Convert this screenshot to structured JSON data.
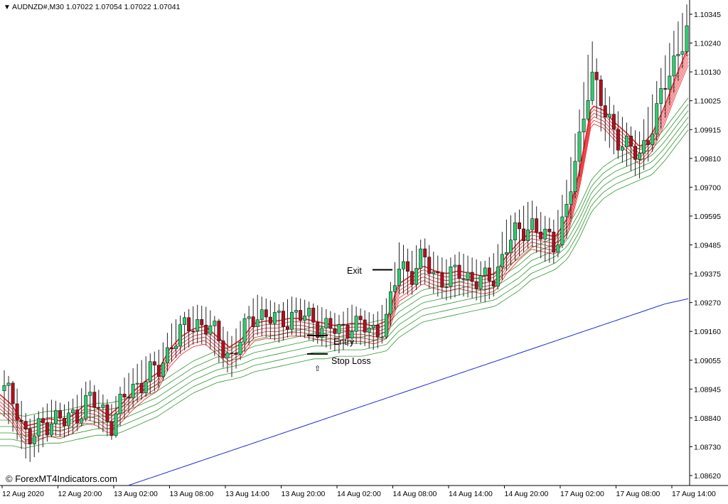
{
  "window": {
    "symbol_header": "AUDNZD#,M30  1.07022 1.07054 1.07022 1.07041",
    "menu_glyph": "▼"
  },
  "watermark": "© ForexMT4Indicators.com",
  "annotations": {
    "exit_label": "Exit",
    "entry_label": "Entry",
    "stop_loss_label": "Stop Loss",
    "arrow_glyph": "⇧"
  },
  "colors": {
    "background": "#ffffff",
    "candle_up": "#2ecc71",
    "candle_down": "#b01020",
    "wick": "#222222",
    "fast_ema": "#e8141c",
    "slow_ema": "#1a8c1a",
    "ma_long": "#1f2bd6",
    "axis": "#000000"
  },
  "chart_data": {
    "type": "candlestick",
    "title": "AUDNZD#,M30",
    "y_axis": {
      "ylim": [
        1.0856,
        1.10405
      ],
      "tick_labels": [
        "1.10345",
        "1.10240",
        "1.10130",
        "1.10025",
        "1.09915",
        "1.09810",
        "1.09700",
        "1.09595",
        "1.09485",
        "1.09375",
        "1.09270",
        "1.09160",
        "1.09055",
        "1.08945",
        "1.08840",
        "1.08730",
        "1.08620"
      ]
    },
    "x_axis": {
      "tick_labels": [
        "12 Aug 2020",
        "12 Aug 20:00",
        "13 Aug 02:00",
        "13 Aug 08:00",
        "13 Aug 14:00",
        "13 Aug 20:00",
        "14 Aug 02:00",
        "14 Aug 08:00",
        "14 Aug 14:00",
        "14 Aug 20:00",
        "17 Aug 02:00",
        "17 Aug 08:00",
        "17 Aug 14:00"
      ]
    },
    "close_series": [
      1.0892,
      1.0887,
      1.0872,
      1.0878,
      1.0882,
      1.088,
      1.0883,
      1.0889,
      1.0885,
      1.088,
      1.0889,
      1.0894,
      1.0898,
      1.09,
      1.0911,
      1.0915,
      1.0918,
      1.0917,
      1.091,
      1.0905,
      1.0914,
      1.0922,
      1.092,
      1.0918,
      1.0921,
      1.092,
      1.0918,
      1.0916,
      1.0914,
      1.0918,
      1.0916,
      1.0914,
      1.092,
      1.094,
      1.0937,
      1.0942,
      1.0936,
      1.0934,
      1.0937,
      1.0935,
      1.0933,
      1.0936,
      1.0948,
      1.0952,
      1.0956,
      1.095,
      1.0948,
      1.0962,
      1.0985,
      1.1015,
      1.0998,
      1.099,
      1.0985,
      1.098,
      1.0992,
      1.1005,
      1.1018,
      1.103
    ],
    "low_series": [
      1.0883,
      1.0875,
      1.0865,
      1.087,
      1.0876,
      1.0875,
      1.0877,
      1.0882,
      1.0878,
      1.0874,
      1.0882,
      1.0888,
      1.0891,
      1.0894,
      1.0904,
      1.0908,
      1.0911,
      1.091,
      1.0903,
      1.0898,
      1.0907,
      1.0914,
      1.0913,
      1.0911,
      1.0914,
      1.0913,
      1.0911,
      1.0909,
      1.0907,
      1.0911,
      1.091,
      1.0908,
      1.0913,
      1.093,
      1.0929,
      1.0934,
      1.0929,
      1.0927,
      1.0929,
      1.0928,
      1.0926,
      1.0929,
      1.0939,
      1.0944,
      1.0948,
      1.0942,
      1.0941,
      1.0951,
      1.0973,
      1.1003,
      1.0989,
      1.0982,
      1.0978,
      1.0973,
      1.0982,
      1.0994,
      1.1007,
      1.102
    ],
    "high_series": [
      1.0899,
      1.0893,
      1.088,
      1.0884,
      1.0888,
      1.0886,
      1.0889,
      1.0896,
      1.0891,
      1.0886,
      1.0896,
      1.0901,
      1.0905,
      1.0907,
      1.0917,
      1.0921,
      1.0924,
      1.0923,
      1.0917,
      1.0912,
      1.092,
      1.0928,
      1.0926,
      1.0924,
      1.0927,
      1.0926,
      1.0924,
      1.0922,
      1.092,
      1.0924,
      1.0922,
      1.092,
      1.0927,
      1.0948,
      1.0944,
      1.095,
      1.0943,
      1.0941,
      1.0944,
      1.0942,
      1.094,
      1.0944,
      1.0957,
      1.096,
      1.0964,
      1.0958,
      1.0956,
      1.0972,
      1.0997,
      1.1026,
      1.1008,
      1.0999,
      1.0993,
      1.0989,
      1.1002,
      1.1016,
      1.1029,
      1.1038
    ],
    "fast_ema_series": [
      1.089,
      1.0886,
      1.0878,
      1.0879,
      1.0881,
      1.088,
      1.0882,
      1.0886,
      1.0885,
      1.0882,
      1.0886,
      1.0891,
      1.0895,
      1.0898,
      1.0907,
      1.0912,
      1.0915,
      1.0916,
      1.0912,
      1.0908,
      1.0911,
      1.0917,
      1.0918,
      1.0918,
      1.0919,
      1.0919,
      1.0918,
      1.0917,
      1.0916,
      1.0917,
      1.0917,
      1.0916,
      1.0918,
      1.0932,
      1.0935,
      1.0939,
      1.0937,
      1.0936,
      1.0937,
      1.0936,
      1.0935,
      1.0936,
      1.0943,
      1.0948,
      1.0952,
      1.0951,
      1.095,
      1.0957,
      1.0975,
      1.1,
      1.0998,
      1.0993,
      1.0989,
      1.0984,
      1.0989,
      1.0999,
      1.1011,
      1.1022
    ],
    "slow_ema_series": [
      1.0876,
      1.0876,
      1.0875,
      1.0876,
      1.0877,
      1.0877,
      1.0878,
      1.0879,
      1.088,
      1.088,
      1.0881,
      1.0883,
      1.0885,
      1.0887,
      1.089,
      1.0893,
      1.0896,
      1.0898,
      1.09,
      1.0901,
      1.0902,
      1.0904,
      1.0905,
      1.0906,
      1.0907,
      1.0908,
      1.0909,
      1.0909,
      1.091,
      1.091,
      1.091,
      1.0911,
      1.0912,
      1.0917,
      1.092,
      1.0923,
      1.0924,
      1.0925,
      1.0926,
      1.0927,
      1.0928,
      1.0929,
      1.0932,
      1.0935,
      1.0939,
      1.0941,
      1.0943,
      1.0947,
      1.0955,
      1.0965,
      1.097,
      1.0973,
      1.0975,
      1.0977,
      1.0979,
      1.0984,
      1.099,
      1.0996
    ],
    "long_ma_series": [
      1.0856,
      1.0859,
      1.0862,
      1.0865,
      1.0868,
      1.0871,
      1.0874,
      1.0877,
      1.088,
      1.0883,
      1.0886,
      1.0889,
      1.0892,
      1.0895,
      1.0898,
      1.0901,
      1.0904,
      1.0907,
      1.091,
      1.0913,
      1.0916,
      1.0919,
      1.0922,
      1.0925,
      1.0927
    ],
    "trade_levels": {
      "exit_price": 1.0938,
      "entry_price": 1.0913,
      "stop_loss_price": 1.0906
    }
  }
}
